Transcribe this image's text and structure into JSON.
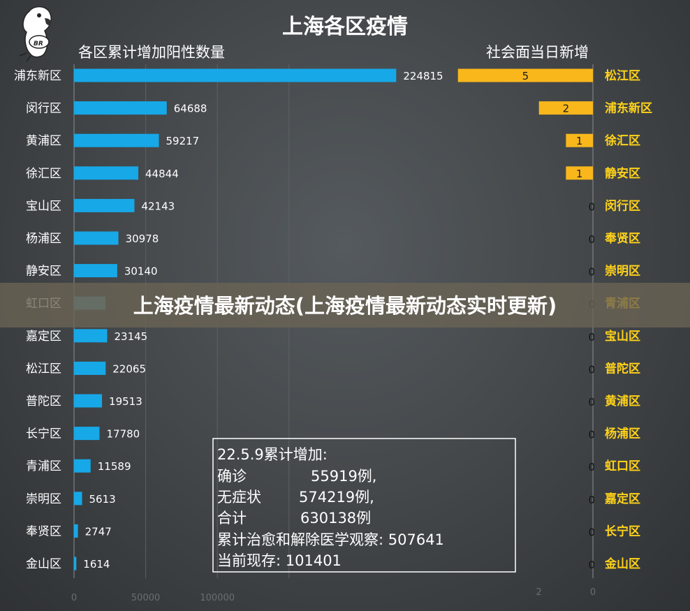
{
  "chart_data": [
    {
      "type": "bar",
      "orientation": "horizontal",
      "title": "上海各区疫情",
      "subtitle": "各区累计增加阳性数量",
      "categories": [
        "浦东新区",
        "闵行区",
        "黄浦区",
        "徐汇区",
        "宝山区",
        "杨浦区",
        "静安区",
        "虹口区",
        "嘉定区",
        "松江区",
        "普陀区",
        "长宁区",
        "青浦区",
        "崇明区",
        "奉贤区",
        "金山区"
      ],
      "values": [
        224815,
        64688,
        59217,
        44844,
        42143,
        30978,
        30140,
        null,
        23145,
        22065,
        19513,
        17780,
        11589,
        5613,
        2747,
        1614
      ],
      "xlim": [
        0,
        250000
      ],
      "xticks": [
        "0",
        "50000",
        "100000"
      ],
      "bar_color": "#17a8e8",
      "occluded_bar_color": "#4f8d9c"
    },
    {
      "type": "bar",
      "orientation": "horizontal",
      "subtitle": "社会面当日新增",
      "categories": [
        "松江区",
        "浦东新区",
        "徐汇区",
        "静安区",
        "闵行区",
        "奉贤区",
        "崇明区",
        "青浦区",
        "宝山区",
        "普陀区",
        "黄浦区",
        "杨浦区",
        "虹口区",
        "嘉定区",
        "长宁区",
        "金山区"
      ],
      "values": [
        5,
        2,
        1,
        1,
        0,
        0,
        0,
        0,
        0,
        0,
        0,
        0,
        0,
        0,
        0,
        0
      ],
      "xlim": [
        0,
        5.2
      ],
      "xticks": [
        "2",
        "0"
      ],
      "reversed": true,
      "bar_color": "#f9b71c"
    }
  ],
  "note": {
    "lines": [
      {
        "label": "22.5.9累计增加:",
        "value": ""
      },
      {
        "label": "确诊",
        "value": "55919例,"
      },
      {
        "label": "无症状",
        "value": "574219例,"
      },
      {
        "label": "合计",
        "value": "630138例"
      },
      {
        "label": "累计治愈和解除医学观察: 507641",
        "value": ""
      },
      {
        "label": "当前现存: 101401",
        "value": ""
      }
    ]
  },
  "banner": {
    "text": "上海疫情最新动态(上海疫情最新动态实时更新)"
  },
  "logo": {
    "icon": "parrot-logo-icon",
    "text": "BR"
  }
}
